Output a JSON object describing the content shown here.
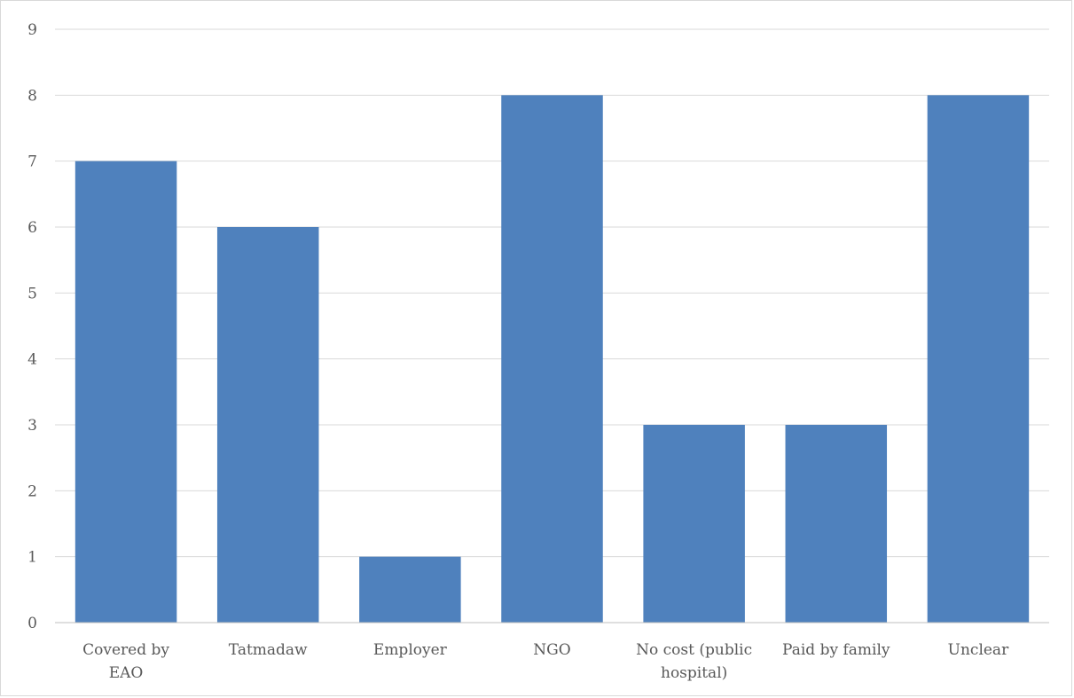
{
  "chart_data": {
    "type": "bar",
    "title": "",
    "xlabel": "",
    "ylabel": "",
    "categories": [
      "Covered by EAO",
      "Tatmadaw",
      "Employer",
      "NGO",
      "No cost (public hospital)",
      "Paid by family",
      "Unclear"
    ],
    "category_label_lines": [
      [
        "Covered by",
        "EAO"
      ],
      [
        "Tatmadaw"
      ],
      [
        "Employer"
      ],
      [
        "NGO"
      ],
      [
        "No cost (public",
        "hospital)"
      ],
      [
        "Paid by family"
      ],
      [
        "Unclear"
      ]
    ],
    "values": [
      7,
      6,
      1,
      8,
      3,
      3,
      8
    ],
    "ylim": [
      0,
      9
    ],
    "yticks": [
      0,
      1,
      2,
      3,
      4,
      5,
      6,
      7,
      8,
      9
    ],
    "grid": true,
    "legend": "none",
    "colors": {
      "bar": "#4f81bd",
      "grid": "#d9d9d9",
      "axis": "#bfbfbf",
      "text": "#595959"
    }
  }
}
